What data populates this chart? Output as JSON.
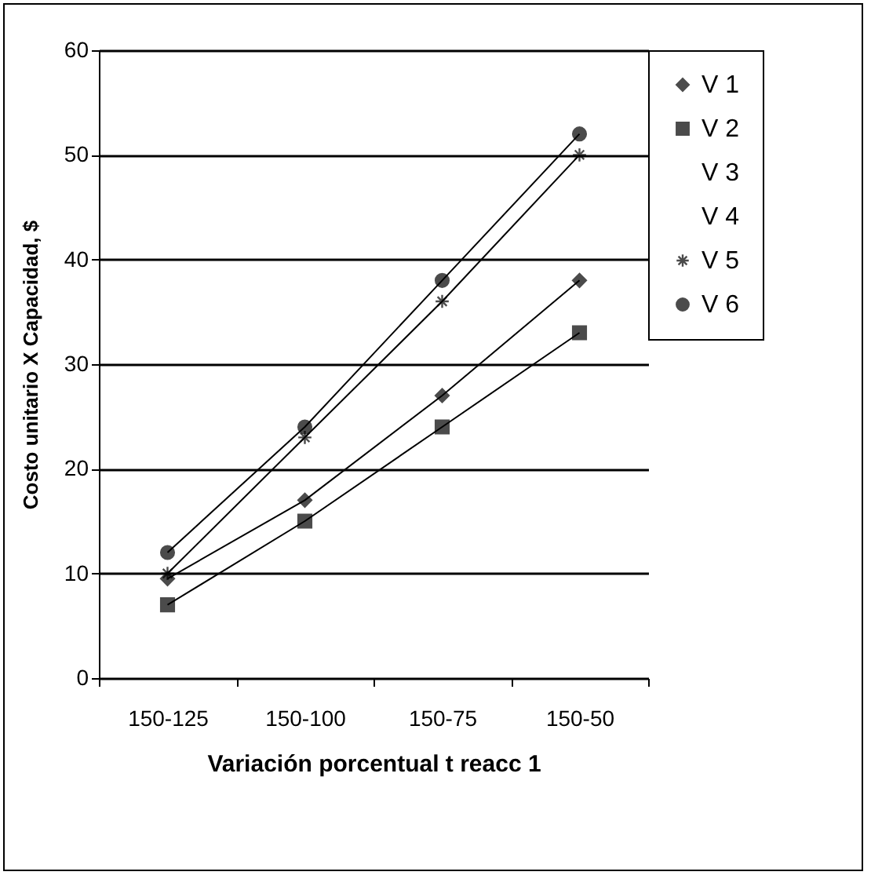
{
  "chart_data": {
    "type": "line",
    "xlabel": "Variación porcentual t reacc 1",
    "ylabel": "Costo unitario X Capacidad, $",
    "categories": [
      "150-125",
      "150-100",
      "150-75",
      "150-50"
    ],
    "series": [
      {
        "name": "V 1",
        "color": "#000000",
        "marker": "diamond",
        "values": [
          9.5,
          17,
          27,
          38
        ]
      },
      {
        "name": "V 2",
        "color": "#000000",
        "marker": "square",
        "values": [
          7,
          15,
          24,
          33
        ]
      },
      {
        "name": "V 3",
        "marker": "none",
        "values": [
          null,
          null,
          null,
          null
        ]
      },
      {
        "name": "V 4",
        "marker": "none",
        "values": [
          null,
          null,
          null,
          null
        ]
      },
      {
        "name": "V 5",
        "color": "#000000",
        "marker": "cross",
        "values": [
          10,
          23,
          36,
          50
        ]
      },
      {
        "name": "V 6",
        "color": "#000000",
        "marker": "circle",
        "values": [
          12,
          24,
          38,
          52
        ]
      }
    ],
    "ylim": [
      0,
      60
    ],
    "yticks": [
      0,
      10,
      20,
      30,
      40,
      50,
      60
    ],
    "grid": "y",
    "legend": "right"
  }
}
